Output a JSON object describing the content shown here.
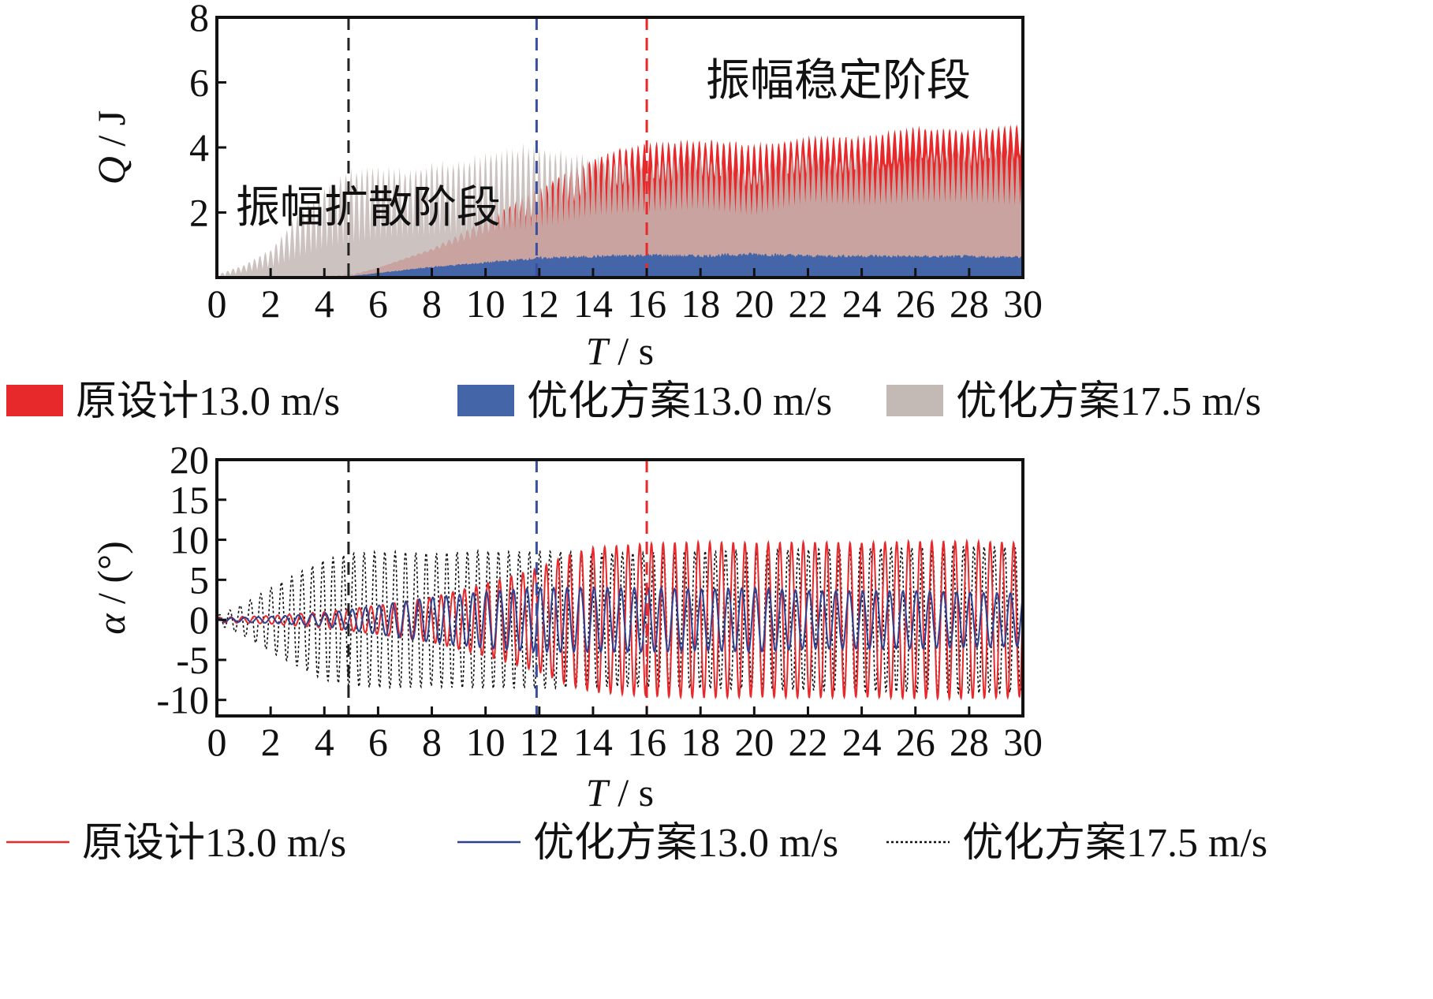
{
  "legend_top": [
    {
      "label": "原设计13.0 m/s",
      "color": "#e8292b"
    },
    {
      "label": "优化方案13.0 m/s",
      "color": "#4465a8"
    },
    {
      "label": "优化方案17.5 m/s",
      "color": "#c3b9b5"
    }
  ],
  "legend_bottom": [
    {
      "label": "原设计13.0 m/s",
      "color": "#e8292b",
      "style": "solid"
    },
    {
      "label": "优化方案13.0 m/s",
      "color": "#2f3f8f",
      "style": "solid"
    },
    {
      "label": "优化方案17.5 m/s",
      "color": "#111111",
      "style": "dotted"
    }
  ],
  "chart_data": [
    {
      "type": "area",
      "title": "",
      "xlabel_italic": "T",
      "xlabel_unit": "s",
      "ylabel_italic": "Q",
      "ylabel_unit": "J",
      "xlim": [
        0,
        30
      ],
      "ylim": [
        0,
        8
      ],
      "xticks": [
        0,
        2,
        4,
        6,
        8,
        10,
        12,
        14,
        16,
        18,
        20,
        22,
        24,
        26,
        28,
        30
      ],
      "yticks": [
        2,
        4,
        6,
        8
      ],
      "grid": false,
      "vlines": [
        {
          "x": 4.9,
          "color": "#222222"
        },
        {
          "x": 11.9,
          "color": "#3a4fa0"
        },
        {
          "x": 16.0,
          "color": "#e8292b"
        }
      ],
      "annotations": [
        {
          "text": "振幅扩散阶段",
          "x": 0.7,
          "y": 1.7
        },
        {
          "text": "振幅稳定阶段",
          "x": 18.2,
          "y": 5.6
        }
      ],
      "series": [
        {
          "name": "原设计13.0 m/s",
          "color": "#e8292b",
          "upper_envelope": {
            "x": [
              0,
              2,
              4,
              5,
              6,
              8,
              10,
              12,
              13,
              14,
              15,
              16,
              18,
              20,
              22,
              24,
              26,
              28,
              30
            ],
            "y": [
              0,
              0.02,
              0.05,
              0.1,
              0.3,
              0.9,
              1.8,
              2.8,
              3.3,
              3.7,
              4.1,
              4.2,
              4.3,
              4.2,
              4.4,
              4.4,
              4.7,
              4.6,
              4.8
            ]
          },
          "trough": {
            "x": [
              0,
              5,
              10,
              13,
              14,
              16,
              18,
              20,
              22,
              24,
              26,
              28,
              30
            ],
            "y": [
              0,
              0.05,
              1.3,
              2.2,
              2.5,
              2.8,
              3.1,
              2.6,
              3.2,
              3.1,
              3.5,
              3.4,
              3.6
            ]
          }
        },
        {
          "name": "优化方案13.0 m/s",
          "color": "#4465a8",
          "upper_envelope": {
            "x": [
              0,
              2,
              4,
              5,
              6,
              8,
              10,
              12,
              14,
              16,
              18,
              20,
              22,
              24,
              26,
              28,
              30
            ],
            "y": [
              0,
              0.02,
              0.03,
              0.05,
              0.15,
              0.35,
              0.5,
              0.65,
              0.7,
              0.75,
              0.72,
              0.78,
              0.72,
              0.72,
              0.7,
              0.7,
              0.68
            ]
          }
        },
        {
          "name": "优化方案17.5 m/s",
          "color": "#c3b9b5",
          "upper_envelope": {
            "x": [
              0,
              1,
              2,
              3,
              4,
              5,
              6,
              7,
              8,
              9,
              10,
              11,
              12,
              13,
              14,
              15,
              16,
              17,
              18,
              19,
              20,
              21,
              22,
              23,
              24,
              25,
              26,
              27,
              28,
              29,
              30
            ],
            "y": [
              0.1,
              0.4,
              0.9,
              2.0,
              2.9,
              3.4,
              3.5,
              3.4,
              3.6,
              3.7,
              3.9,
              4.1,
              4.2,
              3.9,
              3.8,
              3.7,
              3.5,
              3.7,
              3.9,
              3.5,
              3.3,
              3.7,
              3.9,
              3.7,
              3.8,
              3.6,
              3.9,
              4.0,
              4.0,
              4.1,
              3.9
            ]
          },
          "trough": {
            "x": [
              0,
              2,
              4,
              6,
              8,
              10,
              12,
              14,
              16,
              18,
              20,
              22,
              24,
              26,
              28,
              30
            ],
            "y": [
              0,
              0.3,
              0.9,
              1.2,
              1.3,
              1.4,
              1.5,
              1.9,
              2.0,
              2.1,
              1.9,
              2.3,
              2.2,
              2.3,
              2.3,
              2.2
            ]
          }
        }
      ]
    },
    {
      "type": "line",
      "title": "",
      "xlabel_italic": "T",
      "xlabel_unit": "s",
      "ylabel_italic": "α",
      "ylabel_unit": "(°)",
      "xlim": [
        0,
        30
      ],
      "ylim": [
        -12,
        20
      ],
      "xticks": [
        0,
        2,
        4,
        6,
        8,
        10,
        12,
        14,
        16,
        18,
        20,
        22,
        24,
        26,
        28,
        30
      ],
      "yticks": [
        -10,
        -5,
        0,
        5,
        10,
        15,
        20
      ],
      "grid": false,
      "vlines": [
        {
          "x": 4.9,
          "color": "#222222"
        },
        {
          "x": 11.9,
          "color": "#3a4fa0"
        },
        {
          "x": 16.0,
          "color": "#e8292b"
        }
      ],
      "series": [
        {
          "name": "原设计13.0 m/s",
          "color": "#e8292b",
          "style": "solid",
          "frequency_hz": 2.3,
          "amplitude_envelope": {
            "x": [
              0,
              2,
              4,
              6,
              8,
              10,
              12,
              13,
              14,
              16,
              18,
              20,
              22,
              24,
              26,
              28,
              30
            ],
            "y": [
              0.3,
              0.5,
              1.0,
              1.8,
              2.8,
              4.5,
              6.5,
              8.0,
              9.0,
              9.5,
              9.7,
              9.6,
              9.7,
              9.6,
              9.8,
              9.8,
              9.6
            ]
          }
        },
        {
          "name": "优化方案13.0 m/s",
          "color": "#2f3f8f",
          "style": "solid",
          "frequency_hz": 2.0,
          "amplitude_envelope": {
            "x": [
              0,
              2,
              4,
              6,
              8,
              10,
              12,
              14,
              16,
              18,
              20,
              22,
              24,
              26,
              28,
              30
            ],
            "y": [
              0.2,
              0.4,
              0.8,
              1.8,
              2.8,
              3.5,
              4.0,
              4.0,
              4.0,
              3.8,
              4.0,
              3.6,
              3.6,
              3.6,
              3.4,
              3.3
            ]
          }
        },
        {
          "name": "优化方案17.5 m/s",
          "color": "#111111",
          "style": "dotted",
          "frequency_hz": 2.6,
          "amplitude_envelope": {
            "x": [
              0,
              1,
              2,
              3,
              4,
              5,
              6,
              7,
              8,
              9,
              10,
              11,
              12,
              13,
              14,
              16,
              18,
              20,
              22,
              24,
              26,
              28,
              30
            ],
            "y": [
              0.5,
              2.0,
              4.0,
              5.8,
              7.5,
              8.3,
              8.5,
              8.5,
              8.3,
              8.5,
              8.6,
              8.5,
              8.6,
              8.5,
              8.3,
              8.4,
              8.6,
              8.6,
              8.8,
              8.9,
              9.0,
              9.2,
              9.0
            ]
          }
        }
      ]
    }
  ]
}
